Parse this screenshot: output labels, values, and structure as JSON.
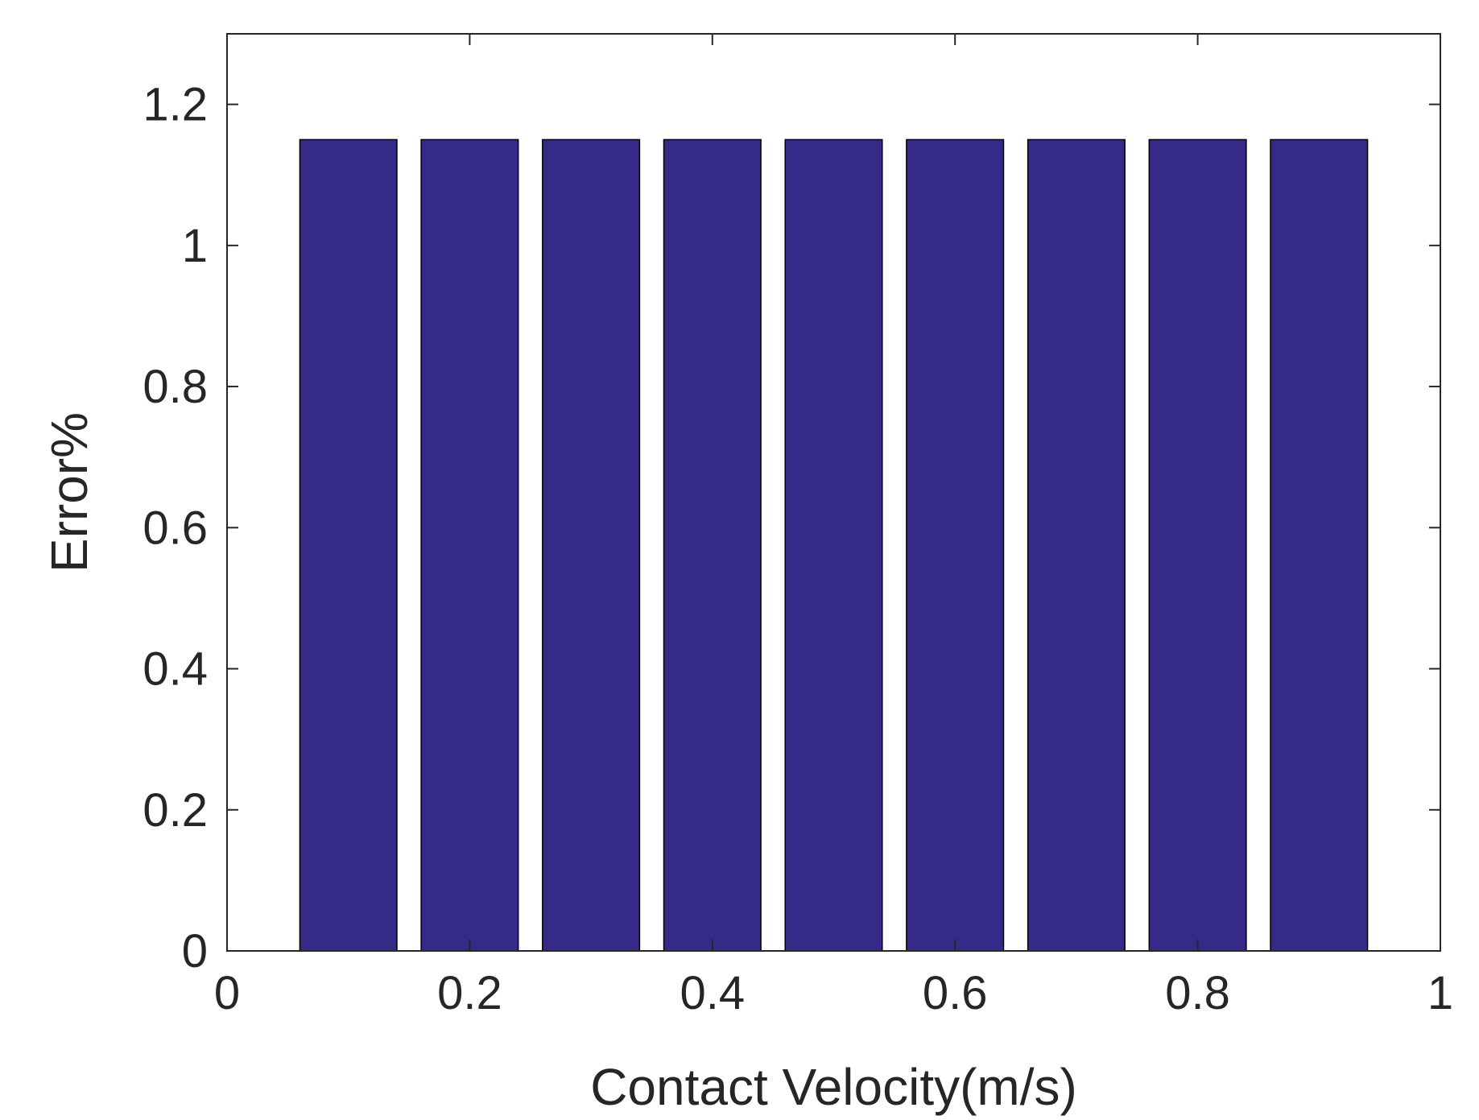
{
  "chart_data": {
    "type": "bar",
    "title": "",
    "xlabel": "Contact Velocity(m/s)",
    "ylabel": "Error%",
    "x": [
      0.1,
      0.2,
      0.3,
      0.4,
      0.5,
      0.6,
      0.7,
      0.8,
      0.9
    ],
    "values": [
      1.15,
      1.15,
      1.15,
      1.15,
      1.15,
      1.15,
      1.15,
      1.15,
      1.15
    ],
    "bar_width": 0.08,
    "xlim": [
      0,
      1
    ],
    "ylim": [
      0,
      1.3
    ],
    "xticks": [
      0,
      0.2,
      0.4,
      0.6,
      0.8,
      1
    ],
    "xtick_labels": [
      "0",
      "0.2",
      "0.4",
      "0.6",
      "0.8",
      "1"
    ],
    "yticks": [
      0,
      0.2,
      0.4,
      0.6,
      0.8,
      1,
      1.2
    ],
    "ytick_labels": [
      "0",
      "0.2",
      "0.4",
      "0.6",
      "0.8",
      "1",
      "1.2"
    ],
    "grid": false,
    "legend": "none",
    "colors": {
      "bar_fill": "#352a87",
      "bar_edge": "#000000",
      "axis": "#262626",
      "background": "#ffffff"
    }
  }
}
